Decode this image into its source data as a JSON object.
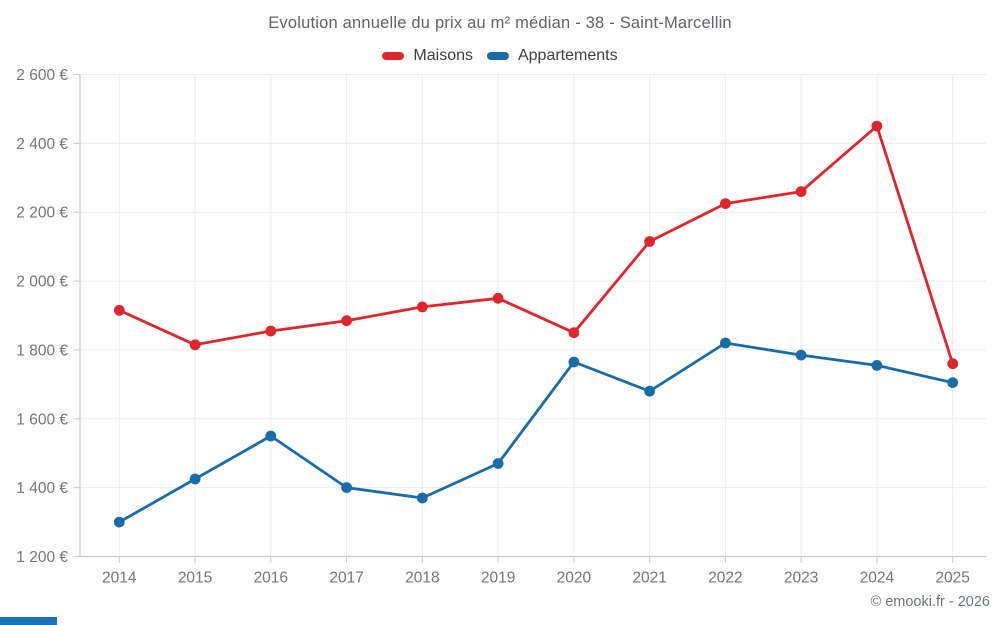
{
  "page": {
    "title": "Evolution annuelle du prix au m² médian - 38 - Saint-Marcellin",
    "footer": "© emooki.fr - 2026"
  },
  "legend": {
    "items": [
      {
        "label": "Maisons",
        "color": "#e0262d"
      },
      {
        "label": "Appartements",
        "color": "#1a6ca8"
      }
    ]
  },
  "colors": {
    "maisons_red": "#e0262d",
    "appartements_blue": "#1a6ca8",
    "title_text": "#5f6368",
    "tick_text": "#757575",
    "legend_text": "#3c4043",
    "gridline": "#ececec",
    "axis_line": "#c9c9c9",
    "footer_text": "#6d737b",
    "accent_bar": "#1b74b8"
  },
  "chart_data": {
    "type": "line",
    "title": "Evolution annuelle du prix au m² médian - 38 - Saint-Marcellin",
    "categories": [
      "2014",
      "2015",
      "2016",
      "2017",
      "2018",
      "2019",
      "2020",
      "2021",
      "2022",
      "2023",
      "2024",
      "2025"
    ],
    "series": [
      {
        "name": "Maisons",
        "color": "#e0262d",
        "values": [
          1915,
          1815,
          1855,
          1885,
          1925,
          1950,
          1850,
          2115,
          2225,
          2260,
          2450,
          1760
        ]
      },
      {
        "name": "Appartements",
        "color": "#1a6ca8",
        "values": [
          1300,
          1425,
          1550,
          1400,
          1370,
          1470,
          1765,
          1680,
          1820,
          1785,
          1755,
          1705
        ]
      }
    ],
    "xlabel": "",
    "ylabel": "",
    "ylim": [
      1200,
      2600
    ],
    "ytick_step": 200,
    "ytick_labels": [
      "1 200 €",
      "1 400 €",
      "1 600 €",
      "1 800 €",
      "2 000 €",
      "2 200 €",
      "2 400 €",
      "2 600 €"
    ],
    "currency_suffix": "€",
    "grid": true,
    "legend_position": "top-center",
    "marker": "circle"
  }
}
